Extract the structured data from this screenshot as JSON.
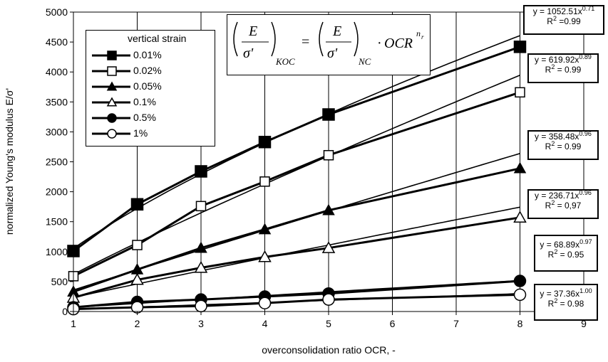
{
  "chart_data": {
    "type": "line",
    "xlabel": "overconsolidation ratio OCR, -",
    "ylabel": "normalized Young's modulus E/σ'",
    "xlim": [
      1,
      9
    ],
    "ylim": [
      0,
      5000
    ],
    "xticks": [
      1,
      2,
      3,
      4,
      5,
      6,
      7,
      8,
      9
    ],
    "yticks": [
      0,
      500,
      1000,
      1500,
      2000,
      2500,
      3000,
      3500,
      4000,
      4500,
      5000
    ],
    "grid": "vertical",
    "legend": {
      "title": "vertical strain",
      "placement": "top-left",
      "entries": [
        "0.01%",
        "0.02%",
        "0.05%",
        "0.1%",
        "0.5%",
        "1%"
      ]
    },
    "series": [
      {
        "name": "0.01%",
        "marker": "filled-square",
        "x": [
          1,
          2,
          3,
          4,
          5,
          8
        ],
        "values": [
          1010,
          1790,
          2340,
          2830,
          3290,
          4420
        ],
        "fit": {
          "a": 1052.51,
          "n": 0.71,
          "eq": "y = 1052.51x",
          "exp": "0.71",
          "r2": "R",
          "r2exp": "2",
          "r2val": " =0.99"
        }
      },
      {
        "name": "0.02%",
        "marker": "open-square",
        "x": [
          1,
          2,
          3,
          4,
          5,
          8
        ],
        "values": [
          590,
          1110,
          1760,
          2170,
          2610,
          3660
        ],
        "fit": {
          "a": 619.92,
          "n": 0.89,
          "eq": "y = 619.92x",
          "exp": "0.89",
          "r2": "R",
          "r2exp": "2",
          "r2val": " = 0.99"
        }
      },
      {
        "name": "0.05%",
        "marker": "filled-triangle",
        "x": [
          1,
          2,
          3,
          4,
          5,
          8
        ],
        "values": [
          330,
          700,
          1060,
          1370,
          1690,
          2390
        ],
        "fit": {
          "a": 358.48,
          "n": 0.96,
          "eq": "y = 358.48x",
          "exp": "0.96",
          "r2": "R",
          "r2exp": "2",
          "r2val": " = 0.99"
        }
      },
      {
        "name": "0.1%",
        "marker": "open-triangle",
        "x": [
          1,
          2,
          3,
          4,
          5,
          8
        ],
        "values": [
          230,
          530,
          730,
          910,
          1060,
          1570
        ],
        "fit": {
          "a": 236.71,
          "n": 0.96,
          "eq": "y = 236.71x",
          "exp": "0.96",
          "r2": "R",
          "r2exp": "2",
          "r2val": " = 0,97"
        }
      },
      {
        "name": "0.5%",
        "marker": "filled-circle",
        "x": [
          1,
          2,
          3,
          4,
          5,
          8
        ],
        "values": [
          70,
          160,
          200,
          250,
          300,
          510
        ],
        "fit": {
          "a": 68.89,
          "n": 0.97,
          "eq": "y = 68.89x",
          "exp": "0.97",
          "r2": "R",
          "r2exp": "2",
          "r2val": " = 0.95"
        }
      },
      {
        "name": "1%",
        "marker": "open-circle",
        "x": [
          1,
          2,
          3,
          4,
          5,
          8
        ],
        "values": [
          40,
          70,
          90,
          140,
          200,
          280
        ],
        "fit": {
          "a": 37.36,
          "n": 1.0,
          "eq": "y = 37.36x",
          "exp": "1.00",
          "r2": "R",
          "r2exp": "2",
          "r2val": " = 0.98"
        }
      }
    ],
    "annotation": {
      "E": "E",
      "sigma": "σ'",
      "koc": "KOC",
      "nc": "NC",
      "eq": "=",
      "dot": "·",
      "ocr": "OCR",
      "n": "n",
      "r": "r"
    }
  }
}
